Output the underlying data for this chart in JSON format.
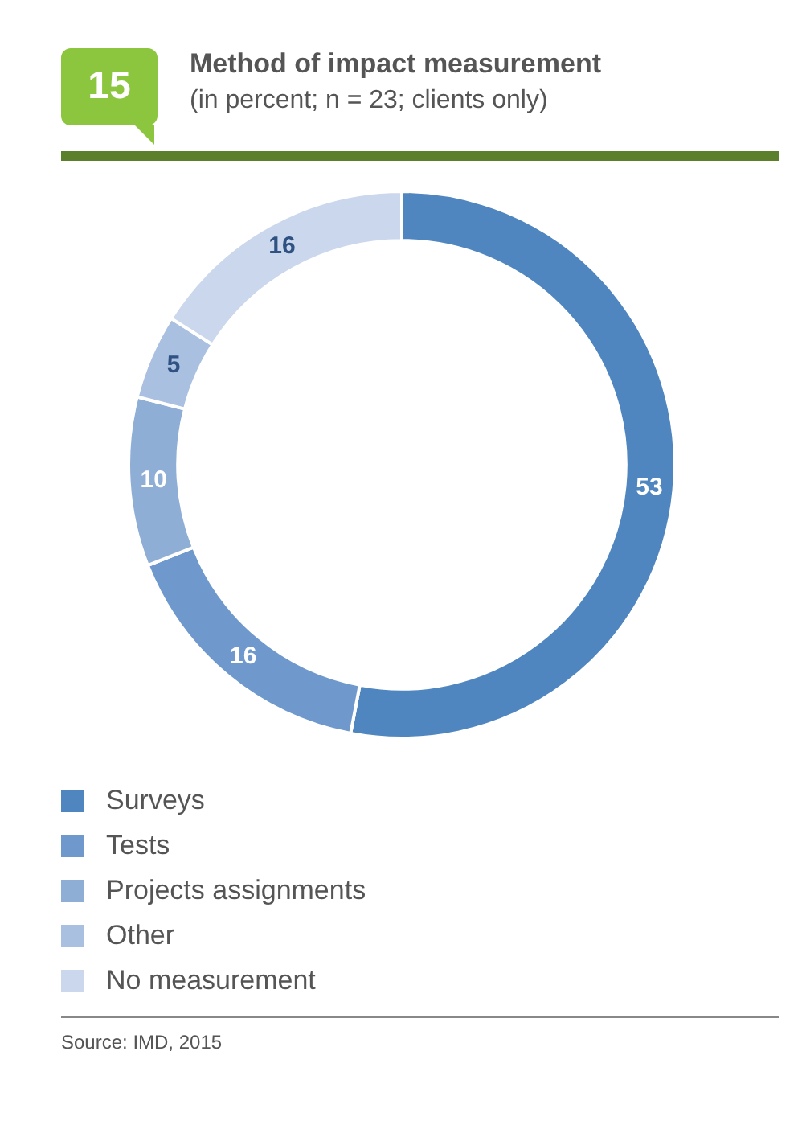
{
  "chart_data": {
    "type": "donut",
    "title": "Method of impact measurement",
    "subtitle": "(in percent; n = 23; clients only)",
    "categories": [
      "Surveys",
      "Tests",
      "Projects assignments",
      "Other",
      "No measurement"
    ],
    "values": [
      53,
      16,
      10,
      5,
      16
    ],
    "colors": [
      "#4f86c0",
      "#6f99cc",
      "#8eaed6",
      "#a9c0e0",
      "#cad7ec"
    ],
    "data_labels": true,
    "legend": "bottom",
    "annotations": [
      "15",
      "Source: IMD, 2015"
    ]
  }
}
